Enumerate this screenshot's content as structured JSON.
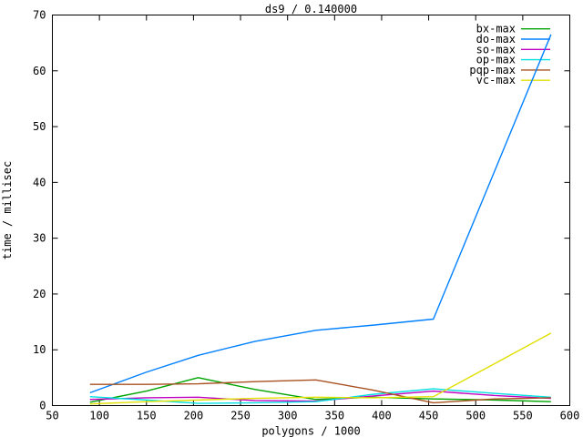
{
  "window": {
    "title": "ds9 / 0.140000"
  },
  "chart_data": {
    "type": "line",
    "title": "ds9 / 0.140000",
    "xlabel": "polygons / 1000",
    "ylabel": "time / millisec",
    "xlim": [
      50,
      600
    ],
    "ylim": [
      0,
      70
    ],
    "xticks": [
      50,
      100,
      150,
      200,
      250,
      300,
      350,
      400,
      450,
      500,
      550,
      600
    ],
    "yticks": [
      0,
      10,
      20,
      30,
      40,
      50,
      60,
      70
    ],
    "grid": false,
    "border_box": true,
    "tick_style": "inward-mirrored",
    "legend_position": "top-right-inside",
    "axis_color": "#000000",
    "background_color": "#ffffff",
    "x": [
      90,
      150,
      205,
      265,
      330,
      390,
      455,
      520,
      580
    ],
    "series": [
      {
        "name": "bx-max",
        "color": "#00a400",
        "values": [
          0.6,
          2.6,
          5.0,
          2.9,
          1.1,
          1.5,
          1.2,
          1.0,
          0.7
        ]
      },
      {
        "name": "do-max",
        "color": "#0080ff",
        "values": [
          2.3,
          6.0,
          9.0,
          11.5,
          13.5,
          14.4,
          15.5,
          42.0,
          66.5
        ]
      },
      {
        "name": "so-max",
        "color": "#c000c0",
        "values": [
          1.1,
          1.4,
          1.5,
          0.9,
          0.8,
          1.7,
          2.6,
          1.8,
          1.3
        ]
      },
      {
        "name": "op-max",
        "color": "#00e0e0",
        "values": [
          1.6,
          1.0,
          0.4,
          0.5,
          0.7,
          2.0,
          3.0,
          2.2,
          1.5
        ]
      },
      {
        "name": "pqp-max",
        "color": "#a85020",
        "values": [
          3.8,
          3.8,
          3.9,
          4.3,
          4.6,
          2.8,
          0.5,
          1.2,
          1.4
        ]
      },
      {
        "name": "vc-max",
        "color": "#e0e000",
        "values": [
          0.3,
          0.7,
          1.0,
          1.3,
          1.5,
          1.4,
          1.6,
          7.5,
          13.0
        ]
      }
    ]
  }
}
